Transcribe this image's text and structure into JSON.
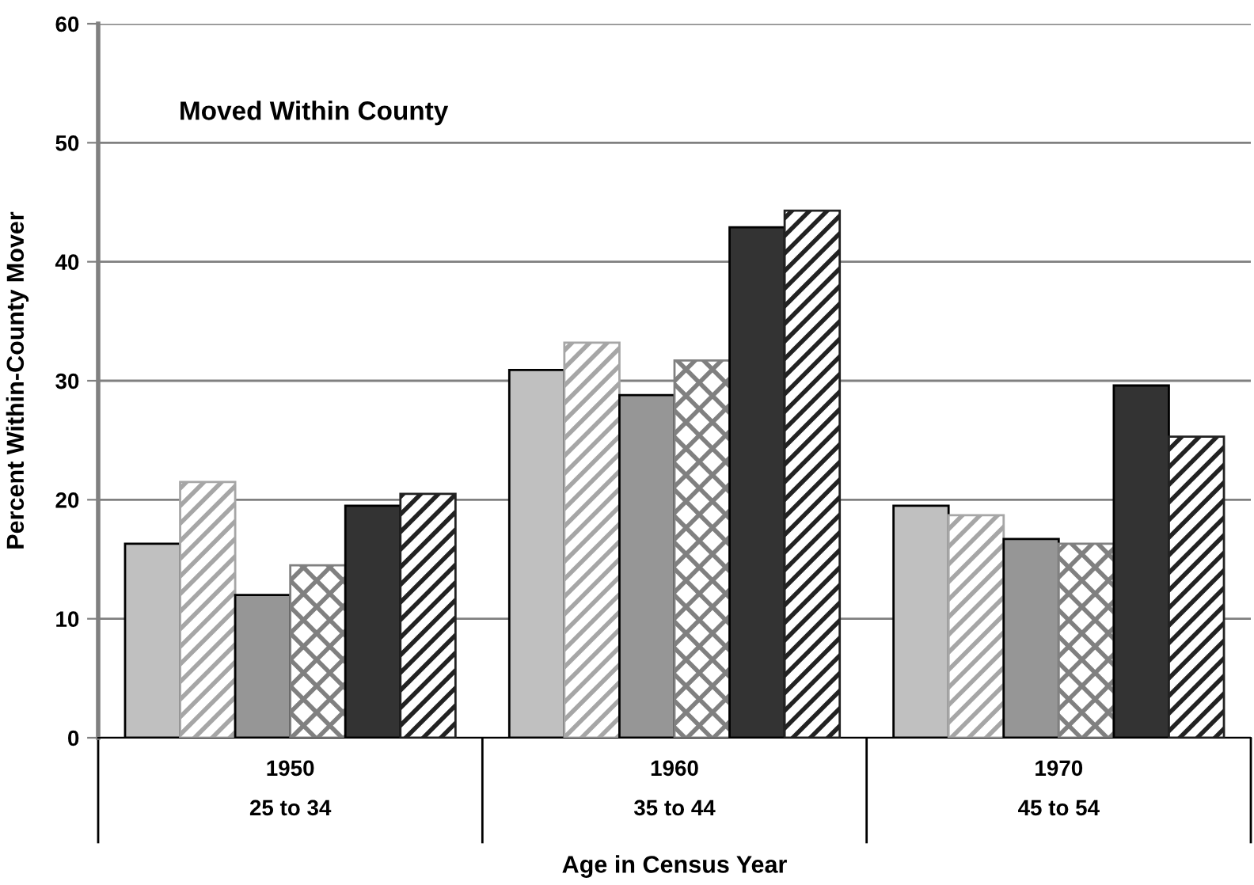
{
  "chart_data": {
    "type": "bar",
    "xlabel": "Age in Census Year",
    "ylabel": "Percent Within-County Mover",
    "annotations": [
      "Moved Within County"
    ],
    "categories": [
      "1950\n25 to 34",
      "1960\n35 to 44",
      "1970\n45 to 54"
    ],
    "series": [
      {
        "color": "#c0c0c0",
        "values": [
          16.3,
          30.9,
          19.5
        ]
      },
      {
        "color": "#a6a6a6",
        "values": [
          21.5,
          33.2,
          18.7
        ]
      },
      {
        "color": "#969696",
        "values": [
          12.0,
          28.8,
          16.7
        ]
      },
      {
        "color": "#808080",
        "values": [
          14.5,
          31.7,
          16.3
        ]
      },
      {
        "color": "#333333",
        "values": [
          19.5,
          42.9,
          29.6
        ]
      },
      {
        "color": "#222222",
        "values": [
          20.5,
          44.3,
          25.3
        ]
      }
    ],
    "ylim": [
      0,
      60
    ],
    "yticks": [
      0,
      10,
      20,
      30,
      40,
      50,
      60
    ],
    "grid": "y",
    "legend": false
  }
}
